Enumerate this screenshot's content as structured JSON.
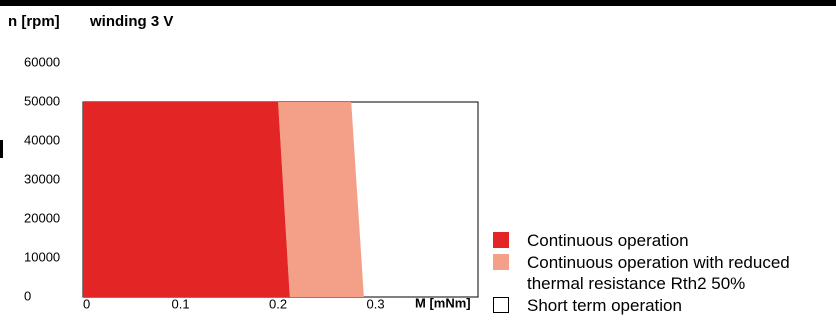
{
  "chart_data": {
    "type": "area",
    "title": "winding 3 V",
    "y_label": "n [rpm]",
    "x_label": "M [mNm]",
    "xlim": [
      0,
      0.405
    ],
    "xticks": [
      0,
      0.1,
      0.2,
      0.3
    ],
    "ylim": [
      0,
      60000
    ],
    "yticks": [
      0,
      10000,
      20000,
      30000,
      40000,
      50000,
      60000
    ],
    "grid": false,
    "series": [
      {
        "name": "Short term operation",
        "color": "#ffffff",
        "x": [
          0,
          0,
          0.405,
          0.405
        ],
        "values": [
          0,
          50000,
          50000,
          0
        ]
      },
      {
        "name": "Continuous operation with reduced thermal resistance Rth2 50%",
        "color": "#f4a088",
        "x": [
          0.2,
          0.275,
          0.288,
          0.212
        ],
        "values": [
          50000,
          50000,
          0,
          0
        ]
      },
      {
        "name": "Continuous operation",
        "color": "#e32526",
        "x": [
          0,
          0,
          0.2,
          0.212
        ],
        "values": [
          0,
          50000,
          50000,
          0
        ]
      }
    ],
    "legend_order": [
      2,
      1,
      0
    ]
  }
}
